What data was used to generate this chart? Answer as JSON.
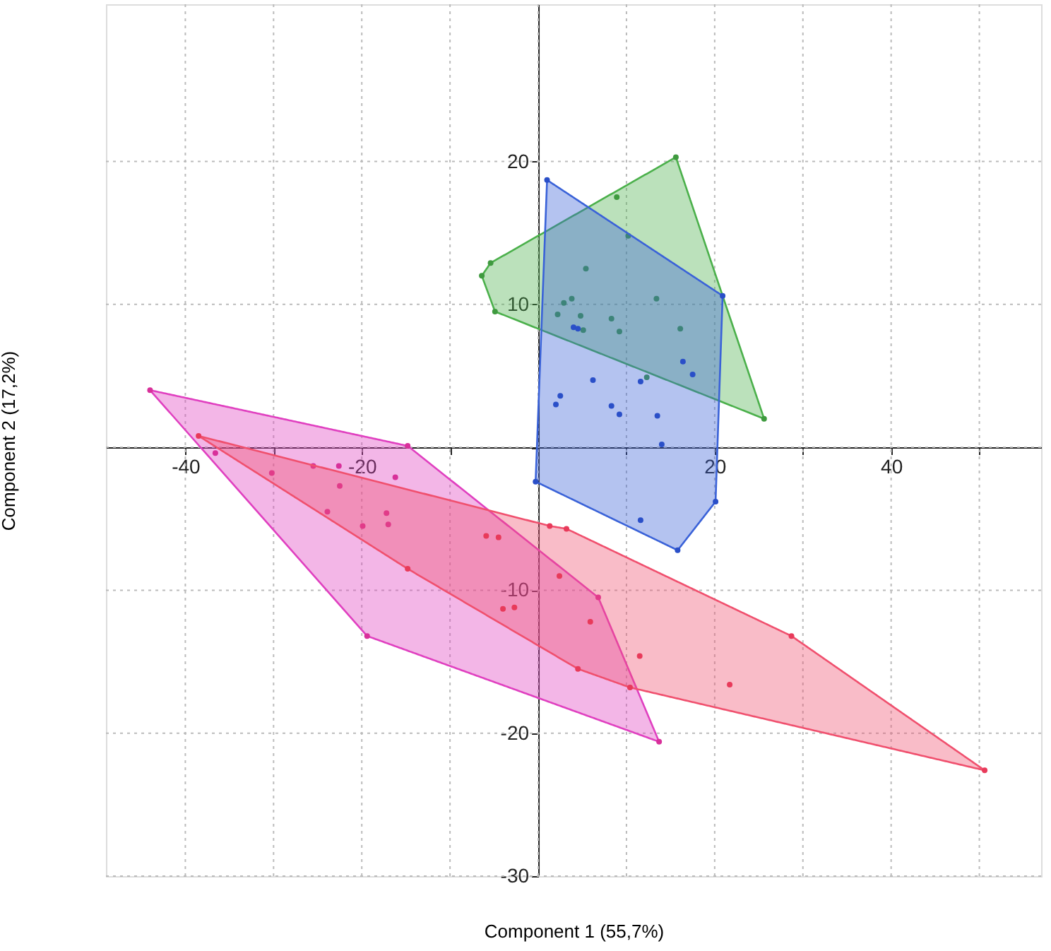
{
  "chart_data": {
    "type": "scatter",
    "xlabel": "Component 1 (55,7%)",
    "ylabel": "Component 2 (17,2%)",
    "xlim": [
      -49,
      57
    ],
    "ylim": [
      -30,
      31
    ],
    "xticks": [
      {
        "value": -40,
        "label": "-40"
      },
      {
        "value": -30,
        "label": null
      },
      {
        "value": -20,
        "label": "-20"
      },
      {
        "value": -10,
        "label": null
      },
      {
        "value": 0,
        "label": null
      },
      {
        "value": 10,
        "label": null
      },
      {
        "value": 20,
        "label": "20"
      },
      {
        "value": 30,
        "label": null
      },
      {
        "value": 40,
        "label": "40"
      },
      {
        "value": 50,
        "label": null
      }
    ],
    "yticks": [
      20,
      10,
      {
        "value": 0,
        "label": null
      },
      -10,
      -20,
      -30
    ],
    "grid": true,
    "marker": "circle",
    "series": [
      {
        "type": "area",
        "marker": "none",
        "color": "#4bb04b",
        "x": [
          -5.4,
          15.6,
          25.6,
          -4.9,
          -6.4,
          -5.4
        ],
        "values": [
          12.9,
          20.3,
          2.0,
          9.5,
          12.0,
          12.9
        ]
      },
      {
        "color": "#3f9a3f",
        "x": [
          -5.4,
          15.6,
          25.6,
          -4.9,
          -6.4,
          8.9,
          10.2,
          5.4,
          3.8,
          2.9,
          2.2,
          4.8,
          5.1,
          8.3,
          9.2,
          13.4,
          16.1,
          12.3
        ],
        "values": [
          12.9,
          20.3,
          2.0,
          9.5,
          12.0,
          17.5,
          14.8,
          12.5,
          10.4,
          10.1,
          9.3,
          9.2,
          8.2,
          9.0,
          8.1,
          10.4,
          8.3,
          4.9
        ]
      },
      {
        "type": "area",
        "marker": "none",
        "color": "#3a62d8",
        "x": [
          1.0,
          20.9,
          20.1,
          15.8,
          -0.3,
          1.0
        ],
        "values": [
          18.7,
          10.6,
          -3.8,
          -7.2,
          -2.4,
          18.7
        ]
      },
      {
        "color": "#2a4fc8",
        "x": [
          1.0,
          20.9,
          20.1,
          15.8,
          -0.3,
          4.0,
          4.5,
          6.2,
          2.5,
          2.0,
          8.3,
          9.2,
          11.6,
          16.4,
          17.5,
          13.5,
          14.0,
          11.6
        ],
        "values": [
          18.7,
          10.6,
          -3.8,
          -7.2,
          -2.4,
          8.4,
          8.3,
          4.7,
          3.6,
          3.0,
          2.9,
          2.3,
          4.6,
          6.0,
          5.1,
          2.2,
          0.2,
          -5.1
        ]
      },
      {
        "type": "area",
        "marker": "none",
        "color": "#e040c0",
        "x": [
          -44.0,
          -14.8,
          6.8,
          13.7,
          -19.4,
          -44.0
        ],
        "values": [
          4.0,
          0.1,
          -10.5,
          -20.6,
          -13.2,
          4.0
        ]
      },
      {
        "color": "#d8309a",
        "x": [
          -44.0,
          -14.8,
          6.8,
          13.7,
          -19.4,
          -36.6,
          -30.2,
          -25.5,
          -22.6,
          -22.5,
          -16.2,
          -23.9,
          -19.9,
          -17.2,
          -17.0
        ],
        "values": [
          4.0,
          0.1,
          -10.5,
          -20.6,
          -13.2,
          -0.4,
          -1.8,
          -1.3,
          -1.3,
          -2.7,
          -2.1,
          -4.5,
          -5.5,
          -4.6,
          -5.4
        ]
      },
      {
        "type": "area",
        "marker": "none",
        "color": "#f0506e",
        "x": [
          -38.5,
          1.3,
          3.2,
          28.7,
          50.6,
          10.4,
          4.5,
          -14.8,
          -38.5
        ],
        "values": [
          0.8,
          -5.5,
          -5.7,
          -13.2,
          -22.6,
          -16.8,
          -15.5,
          -8.5,
          0.8
        ]
      },
      {
        "color": "#e83a5a",
        "x": [
          -38.5,
          1.3,
          3.2,
          28.7,
          50.6,
          10.4,
          4.5,
          -14.8,
          -5.9,
          -4.5,
          -4.0,
          -2.7,
          2.4,
          5.9,
          11.5,
          21.7
        ],
        "values": [
          0.8,
          -5.5,
          -5.7,
          -13.2,
          -22.6,
          -16.8,
          -15.5,
          -8.5,
          -6.2,
          -6.3,
          -11.3,
          -11.2,
          -9.0,
          -12.2,
          -14.6,
          -16.6
        ]
      }
    ]
  }
}
